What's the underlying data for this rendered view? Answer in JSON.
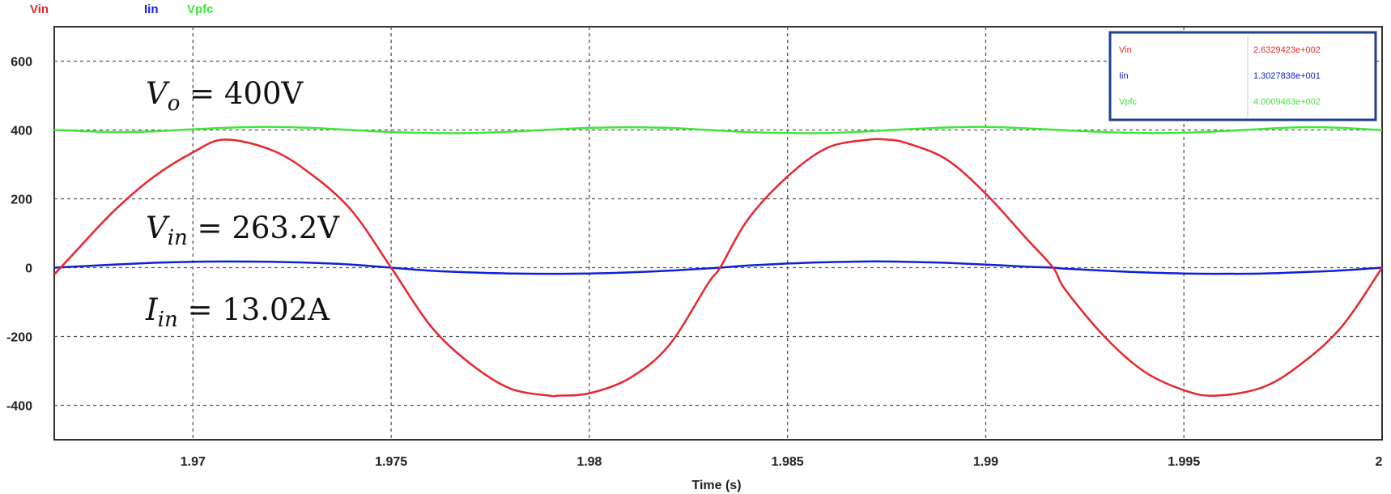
{
  "chart_data": {
    "type": "line",
    "xlabel": "Time (s)",
    "ylabel": "",
    "xlim": [
      1.9665,
      2.0
    ],
    "ylim": [
      -500,
      700
    ],
    "x_ticks": [
      {
        "value": 1.97,
        "label": "1.97"
      },
      {
        "value": 1.975,
        "label": "1.975"
      },
      {
        "value": 1.98,
        "label": "1.98"
      },
      {
        "value": 1.985,
        "label": "1.985"
      },
      {
        "value": 1.99,
        "label": "1.99"
      },
      {
        "value": 1.995,
        "label": "1.995"
      },
      {
        "value": 2.0,
        "label": "2"
      }
    ],
    "y_ticks": [
      {
        "value": 600,
        "label": "600"
      },
      {
        "value": 400,
        "label": "400"
      },
      {
        "value": 200,
        "label": "200"
      },
      {
        "value": 0,
        "label": "0"
      },
      {
        "value": -200,
        "label": "-200"
      },
      {
        "value": -400,
        "label": "-400"
      }
    ],
    "grid": true,
    "legend_position": "top-left",
    "series": [
      {
        "name": "Vin",
        "color": "#e8262b",
        "x": [
          1.9665,
          1.967,
          1.968,
          1.969,
          1.97,
          1.9708,
          1.972,
          1.973,
          1.974,
          1.975,
          1.976,
          1.977,
          1.978,
          1.979,
          1.9792,
          1.98,
          1.981,
          1.982,
          1.983,
          1.9833,
          1.984,
          1.985,
          1.986,
          1.987,
          1.9875,
          1.988,
          1.989,
          1.99,
          1.991,
          1.9917,
          1.992,
          1.993,
          1.994,
          1.995,
          1.9958,
          1.997,
          1.998,
          1.999,
          2.0
        ],
        "y": [
          -20,
          42,
          164,
          263,
          335,
          372,
          341,
          270,
          166,
          0,
          -170,
          -279,
          -351,
          -372,
          -372,
          -365,
          -322,
          -227,
          -45,
          0,
          140,
          265,
          348,
          371,
          372,
          362,
          315,
          215,
          88,
          0,
          -63,
          -201,
          -302,
          -356,
          -372,
          -347,
          -276,
          -169,
          0
        ]
      },
      {
        "name": "Iin",
        "color": "#1020d8",
        "x": [
          1.9665,
          1.967,
          1.968,
          1.969,
          1.97,
          1.9708,
          1.972,
          1.973,
          1.974,
          1.975,
          1.976,
          1.977,
          1.978,
          1.979,
          1.98,
          1.981,
          1.982,
          1.983,
          1.9833,
          1.984,
          1.985,
          1.986,
          1.987,
          1.9875,
          1.988,
          1.989,
          1.99,
          1.991,
          1.9917,
          1.992,
          1.993,
          1.994,
          1.995,
          1.9958,
          1.997,
          1.998,
          1.999,
          2.0
        ],
        "y": [
          0,
          3,
          9,
          14,
          17,
          18,
          17,
          14,
          9,
          0,
          -9,
          -14,
          -17,
          -18,
          -17,
          -14,
          -9,
          -2,
          0,
          6,
          12,
          16,
          18,
          18,
          17,
          14,
          9,
          3,
          0,
          -3,
          -9,
          -14,
          -17,
          -18,
          -17,
          -13,
          -8,
          0
        ]
      },
      {
        "name": "Vpfc",
        "color": "#3ee63a",
        "x": [
          1.9665,
          1.967,
          1.968,
          1.969,
          1.97,
          1.971,
          1.972,
          1.973,
          1.974,
          1.975,
          1.976,
          1.977,
          1.978,
          1.979,
          1.98,
          1.981,
          1.982,
          1.983,
          1.984,
          1.985,
          1.986,
          1.987,
          1.988,
          1.989,
          1.99,
          1.991,
          1.992,
          1.993,
          1.994,
          1.995,
          1.996,
          1.997,
          1.998,
          1.999,
          2.0
        ],
        "y": [
          400,
          398,
          394,
          396,
          402,
          407,
          409,
          406,
          400,
          394,
          391,
          391,
          395,
          401,
          406,
          408,
          406,
          400,
          394,
          391,
          391,
          396,
          402,
          407,
          409,
          405,
          399,
          394,
          391,
          392,
          397,
          403,
          408,
          406,
          399
        ]
      }
    ]
  },
  "annotations": [
    {
      "symbol": "V",
      "subscript": "o",
      "text": " = 400V"
    },
    {
      "symbol": "V",
      "subscript": "in",
      "text": " = 263.2V"
    },
    {
      "symbol": "I",
      "subscript": "in",
      "text": " = 13.02A"
    }
  ],
  "readout": [
    {
      "name": "Vin",
      "value": "2.6329423e+002",
      "color": "#e8262b"
    },
    {
      "name": "Iin",
      "value": "1.3027838e+001",
      "color": "#1020d8"
    },
    {
      "name": "Vpfc",
      "value": "4.0009463e+002",
      "color": "#3ee63a"
    }
  ],
  "colors": {
    "grid": "#555555",
    "frame": "#333333",
    "readout_border": "#1f3f8f"
  }
}
